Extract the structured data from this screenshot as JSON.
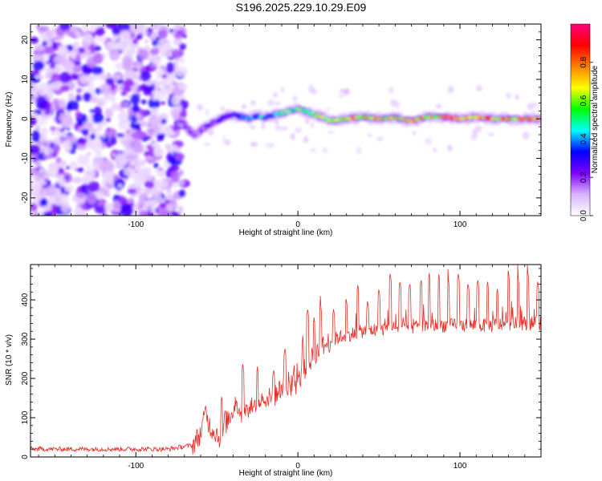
{
  "title": "S196.2025.229.10.29.E09",
  "chart_data": [
    {
      "type": "heatmap",
      "xlabel": "Height of straight line (km)",
      "ylabel": "Frequency (Hz)",
      "xlim": [
        -165,
        150
      ],
      "ylim": [
        -24.5,
        24
      ],
      "xticks": [
        -100,
        0,
        100
      ],
      "yticks": [
        -20,
        -10,
        0,
        10,
        20
      ],
      "colorbar": {
        "label": "Normalized spectral amplitude",
        "range": [
          0.0,
          1.0
        ],
        "ticks": [
          "0.0",
          "0.2",
          "0.4",
          "0.6",
          "0.8"
        ],
        "tick_values": [
          0.0,
          0.2,
          0.4,
          0.6,
          0.8
        ],
        "colors": [
          "#ffffff",
          "#d9b3ff",
          "#7f00ff",
          "#0000ff",
          "#00ffff",
          "#00ff00",
          "#ffff00",
          "#ff8000",
          "#ff0000",
          "#ff007f"
        ]
      },
      "description_series": {
        "noise_region_x": [
          -165,
          -70
        ],
        "ridge_x": [
          -72,
          -68,
          -64,
          -60,
          -55,
          -50,
          -45,
          -40,
          -35,
          -30,
          -25,
          -20,
          -15,
          -10,
          -5,
          0,
          5,
          10,
          15,
          20,
          30,
          40,
          50,
          60,
          70,
          80,
          90,
          100,
          110,
          120,
          130,
          140,
          150
        ],
        "ridge_freq": [
          -0.5,
          -2.5,
          -4.0,
          -3.0,
          -1.5,
          -0.5,
          0.5,
          1.0,
          0.5,
          0.0,
          0.8,
          0.3,
          1.0,
          1.5,
          2.0,
          2.5,
          2.0,
          1.0,
          0.5,
          -0.5,
          0.0,
          0.5,
          0.0,
          0.3,
          -0.5,
          0.5,
          0.5,
          0.0,
          0.5,
          0.0,
          0.0,
          0.0,
          0.0
        ],
        "ridge_amplitude": [
          0.25,
          0.25,
          0.2,
          0.22,
          0.25,
          0.3,
          0.35,
          0.4,
          0.45,
          0.45,
          0.5,
          0.55,
          0.6,
          0.65,
          0.7,
          0.75,
          0.7,
          0.7,
          0.75,
          0.8,
          0.82,
          0.85,
          0.85,
          0.87,
          0.87,
          0.9,
          0.9,
          0.9,
          0.92,
          0.92,
          0.93,
          0.93,
          0.93
        ]
      }
    },
    {
      "type": "line",
      "xlabel": "Height of straight line (km)",
      "ylabel": "SNR (10 * v/v)",
      "xlim": [
        -165,
        150
      ],
      "ylim": [
        0,
        490
      ],
      "xticks": [
        -100,
        0,
        100
      ],
      "yticks": [
        0,
        100,
        200,
        300,
        400
      ],
      "color": "#e8302a",
      "series": [
        {
          "name": "SNR",
          "x": [
            -165,
            -140,
            -120,
            -100,
            -80,
            -65,
            -60,
            -57,
            -54,
            -50,
            -47,
            -44,
            -41,
            -38,
            -35,
            -30,
            -25,
            -20,
            -15,
            -10,
            -5,
            0,
            5,
            10,
            15,
            20,
            25,
            30,
            35,
            40,
            50,
            60,
            70,
            80,
            90,
            100,
            110,
            120,
            130,
            140,
            150
          ],
          "values": [
            20,
            20,
            20,
            20,
            20,
            30,
            60,
            110,
            75,
            60,
            40,
            90,
            110,
            150,
            100,
            120,
            140,
            150,
            150,
            180,
            170,
            190,
            230,
            260,
            280,
            295,
            305,
            310,
            315,
            320,
            325,
            330,
            330,
            335,
            335,
            335,
            335,
            335,
            340,
            340,
            340
          ],
          "spike_peaks": [
            [
              -57,
              135
            ],
            [
              -47,
              155
            ],
            [
              -45,
              120
            ],
            [
              -34,
              240
            ],
            [
              -25,
              230
            ],
            [
              -15,
              225
            ],
            [
              -8,
              280
            ],
            [
              3,
              300
            ],
            [
              6,
              380
            ],
            [
              10,
              355
            ],
            [
              14,
              390
            ],
            [
              22,
              380
            ],
            [
              30,
              400
            ],
            [
              37,
              440
            ],
            [
              43,
              400
            ],
            [
              50,
              430
            ],
            [
              57,
              470
            ],
            [
              63,
              450
            ],
            [
              69,
              445
            ],
            [
              76,
              455
            ],
            [
              81,
              470
            ],
            [
              87,
              465
            ],
            [
              93,
              450
            ],
            [
              99,
              470
            ],
            [
              105,
              445
            ],
            [
              111,
              455
            ],
            [
              117,
              450
            ],
            [
              123,
              430
            ],
            [
              130,
              470
            ],
            [
              136,
              455
            ],
            [
              142,
              470
            ],
            [
              148,
              450
            ]
          ]
        }
      ]
    }
  ]
}
